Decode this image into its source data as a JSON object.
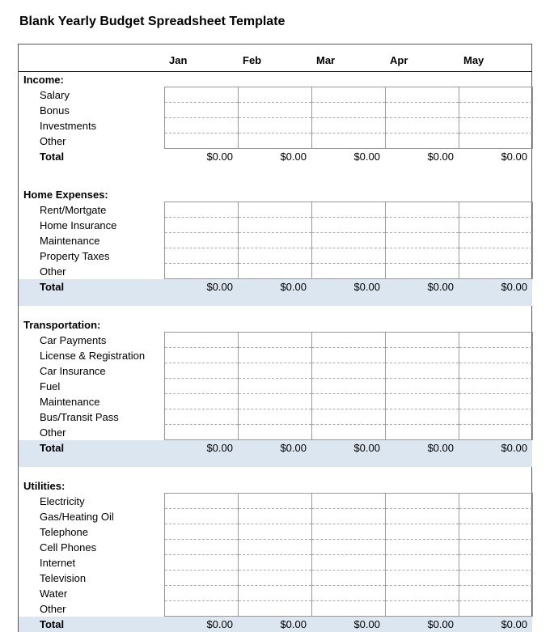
{
  "title": "Blank Yearly Budget Spreadsheet Template",
  "months": [
    "Jan",
    "Feb",
    "Mar",
    "Apr",
    "May"
  ],
  "total_label": "Total",
  "zero": "$0.00",
  "colors": {
    "shade": "#dce6f1",
    "border": "#999999",
    "background": "#ffffff"
  },
  "sections": [
    {
      "header": "Income:",
      "items": [
        "Salary",
        "Bonus",
        "Investments",
        "Other"
      ],
      "totals": [
        "$0.00",
        "$0.00",
        "$0.00",
        "$0.00",
        "$0.00"
      ],
      "shaded": false
    },
    {
      "header": "Home Expenses:",
      "items": [
        "Rent/Mortgate",
        "Home Insurance",
        "Maintenance",
        "Property Taxes",
        "Other"
      ],
      "totals": [
        "$0.00",
        "$0.00",
        "$0.00",
        "$0.00",
        "$0.00"
      ],
      "shaded": true
    },
    {
      "header": "Transportation:",
      "items": [
        "Car Payments",
        "License & Registration",
        "Car Insurance",
        "Fuel",
        "Maintenance",
        "Bus/Transit Pass",
        "Other"
      ],
      "totals": [
        "$0.00",
        "$0.00",
        "$0.00",
        "$0.00",
        "$0.00"
      ],
      "shaded": true
    },
    {
      "header": "Utilities:",
      "items": [
        "Electricity",
        "Gas/Heating Oil",
        "Telephone",
        "Cell Phones",
        "Internet",
        "Television",
        "Water",
        "Other"
      ],
      "totals": [
        "$0.00",
        "$0.00",
        "$0.00",
        "$0.00",
        "$0.00"
      ],
      "shaded": true
    }
  ]
}
